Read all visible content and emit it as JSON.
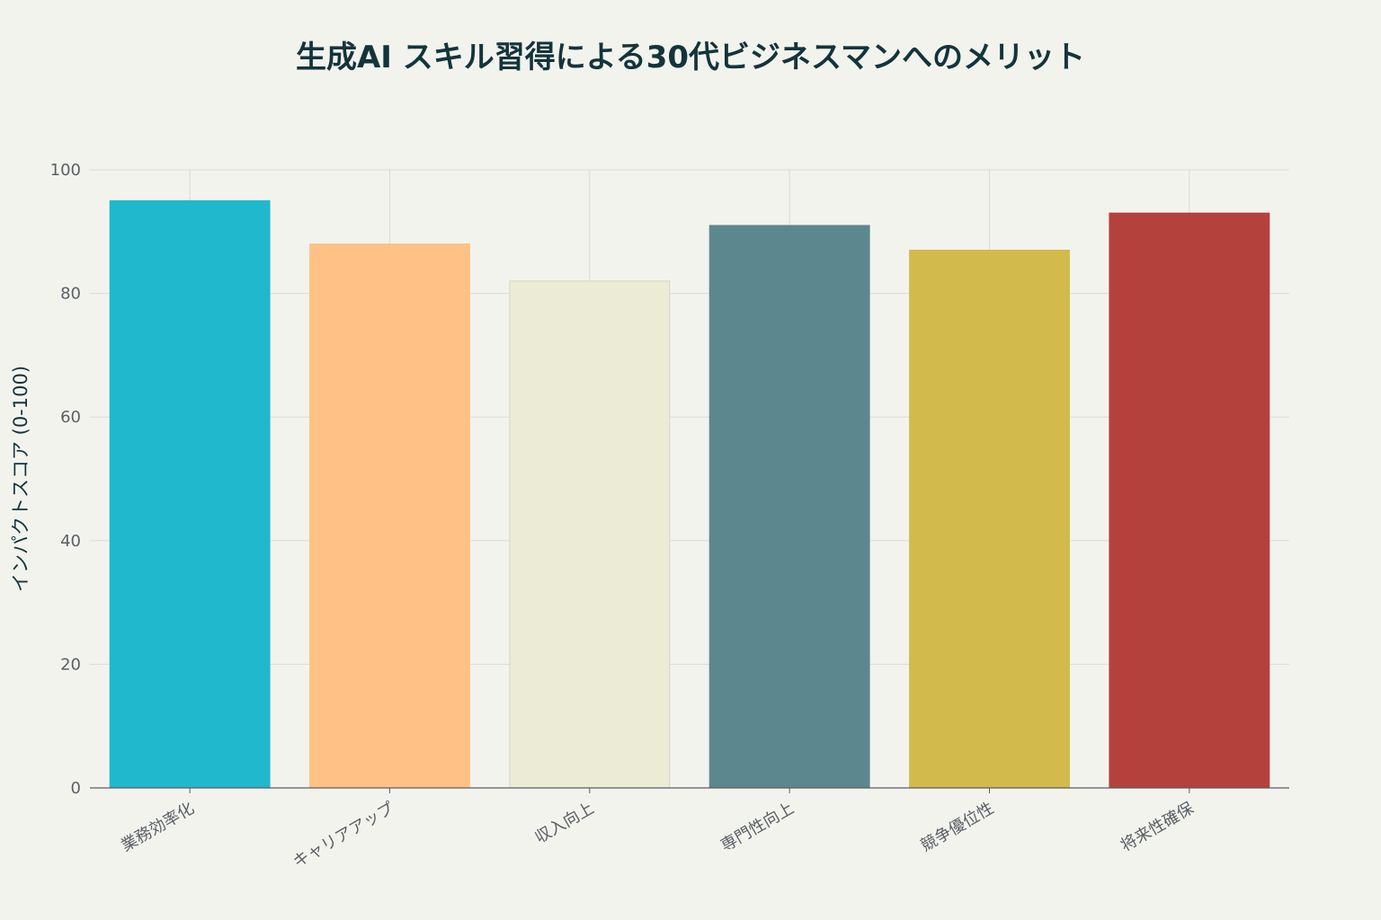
{
  "chart_data": {
    "type": "bar",
    "title": "生成AI スキル習得による30代ビジネスマンへのメリット",
    "xlabel": "",
    "ylabel": "インパクトスコア (0-100)",
    "categories": [
      "業務効率化",
      "キャリアアップ",
      "収入向上",
      "専門性向上",
      "競争優位性",
      "将来性確保"
    ],
    "values": [
      95,
      88,
      82,
      91,
      87,
      93
    ],
    "colors": [
      "#1fb8cd",
      "#ffc185",
      "#eceBd5",
      "#5d878f",
      "#d2ba4c",
      "#b4413c"
    ],
    "ylim": [
      0,
      100
    ],
    "yticks": [
      0,
      20,
      40,
      60,
      80,
      100
    ],
    "grid": true,
    "legend": "none"
  }
}
